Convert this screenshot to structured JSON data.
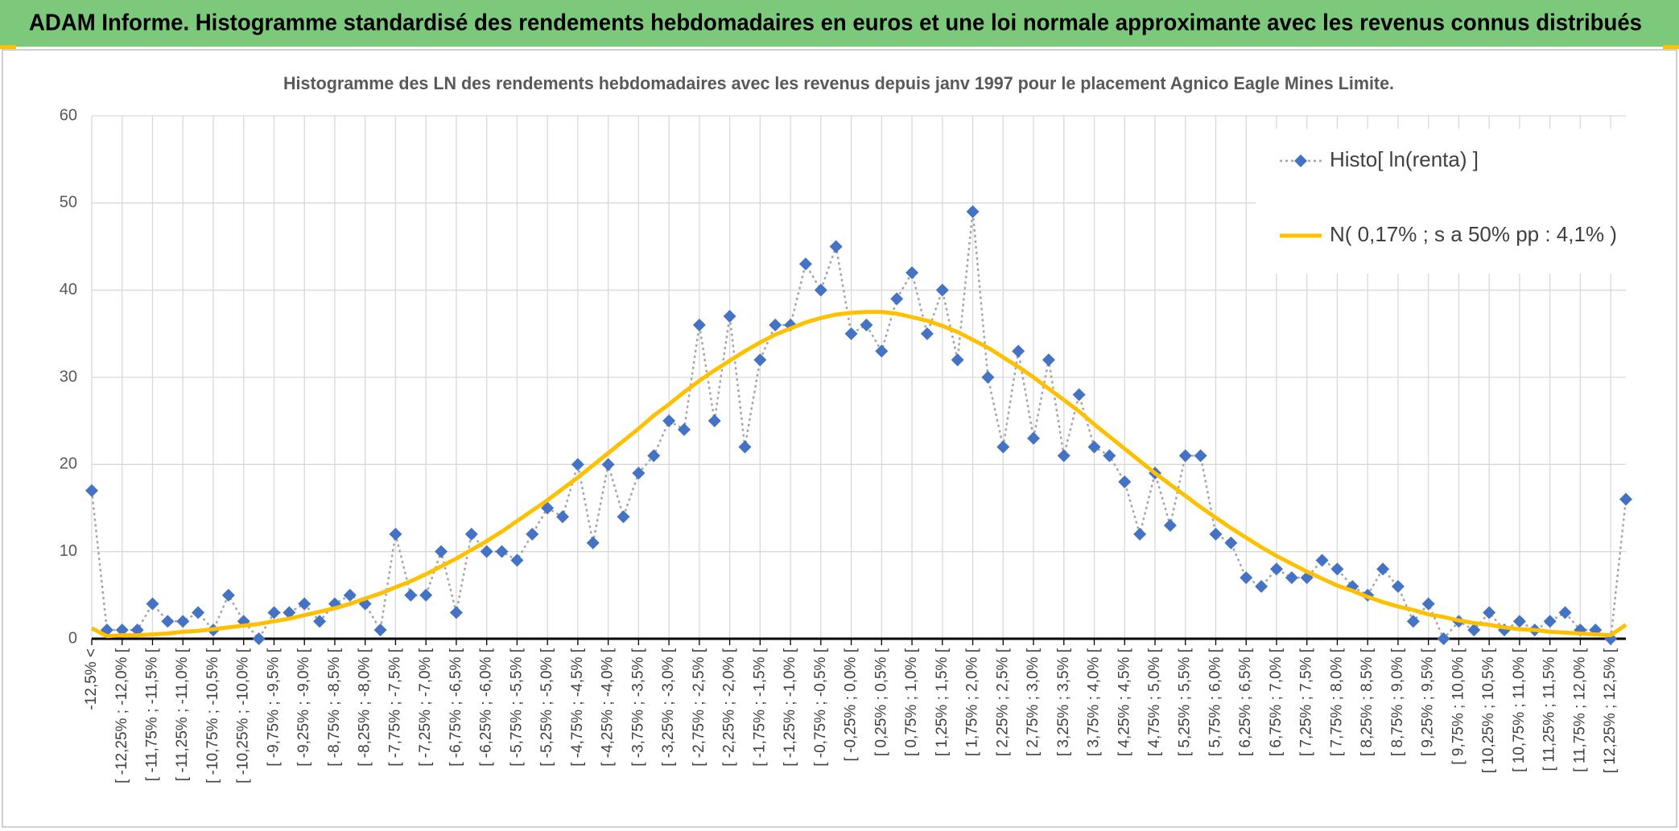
{
  "chart_data": {
    "type": "line",
    "title": "ADAM Informe. Histogramme standardisé des rendements hebdomadaires en euros et une loi normale approximante avec les revenus connus distribués",
    "subtitle": "Histogramme des LN des rendements hebdomadaires avec les revenus depuis janv 1997 pour le placement Agnico Eagle Mines Limite.",
    "categories": [
      "-12,5% <",
      null,
      "[ -12,25% ; -12,0% [",
      null,
      "[ -11,75% ; -11,5% [",
      null,
      "[ -11,25% ; -11,0% [",
      null,
      "[ -10,75% ; -10,5% [",
      null,
      "[ -10,25% ; -10,0% [",
      null,
      "[ -9,75% ; -9,5% [",
      null,
      "[ -9,25% ; -9,0% [",
      null,
      "[ -8,75% ; -8,5% [",
      null,
      "[ -8,25% ; -8,0% [",
      null,
      "[ -7,75% ; -7,5% [",
      null,
      "[ -7,25% ; -7,0% [",
      null,
      "[ -6,75% ; -6,5% [",
      null,
      "[ -6,25% ; -6,0% [",
      null,
      "[ -5,75% ; -5,5% [",
      null,
      "[ -5,25% ; -5,0% [",
      null,
      "[ -4,75% ; -4,5% [",
      null,
      "[ -4,25% ; -4,0% [",
      null,
      "[ -3,75% ; -3,5% [",
      null,
      "[ -3,25% ; -3,0% [",
      null,
      "[ -2,75% ; -2,5% [",
      null,
      "[ -2,25% ; -2,0% [",
      null,
      "[ -1,75% ; -1,5% [",
      null,
      "[ -1,25% ; -1,0% [",
      null,
      "[ -0,75% ; -0,5% [",
      null,
      "[ -0,25% ; 0,0% [",
      null,
      "[ 0,25% ; 0,5% [",
      null,
      "[ 0,75% ; 1,0% [",
      null,
      "[ 1,25% ; 1,5% [",
      null,
      "[ 1,75% ; 2,0% [",
      null,
      "[ 2,25% ; 2,5% [",
      null,
      "[ 2,75% ; 3,0% [",
      null,
      "[ 3,25% ; 3,5% [",
      null,
      "[ 3,75% ; 4,0% [",
      null,
      "[ 4,25% ; 4,5% [",
      null,
      "[ 4,75% ; 5,0% [",
      null,
      "[ 5,25% ; 5,5% [",
      null,
      "[ 5,75% ; 6,0% [",
      null,
      "[ 6,25% ; 6,5% [",
      null,
      "[ 6,75% ; 7,0% [",
      null,
      "[ 7,25% ; 7,5% [",
      null,
      "[ 7,75% ; 8,0% [",
      null,
      "[ 8,25% ; 8,5% [",
      null,
      "[ 8,75% ; 9,0% [",
      null,
      "[ 9,25% ; 9,5% [",
      null,
      "[ 9,75% ; 10,0% [",
      null,
      "[ 10,25% ; 10,5% [",
      null,
      "[ 10,75% ; 11,0% [",
      null,
      "[ 11,25% ; 11,5% [",
      null,
      "[ 11,75% ; 12,0% [",
      null,
      "[ 12,25% ; 12,5% [",
      null
    ],
    "series": [
      {
        "name": "Histo[ ln(renta) ]",
        "color": "#4472c4",
        "marker": "diamond",
        "line_color": "#a5a5a5",
        "line_style": "dotted",
        "values": [
          17,
          1,
          1,
          1,
          4,
          2,
          2,
          3,
          1,
          5,
          2,
          0,
          3,
          3,
          4,
          2,
          4,
          5,
          4,
          1,
          12,
          5,
          5,
          10,
          3,
          12,
          10,
          10,
          9,
          12,
          15,
          14,
          20,
          11,
          20,
          14,
          19,
          21,
          25,
          24,
          36,
          25,
          37,
          22,
          32,
          36,
          36,
          43,
          40,
          45,
          35,
          36,
          33,
          39,
          42,
          35,
          40,
          32,
          49,
          30,
          22,
          33,
          23,
          32,
          21,
          28,
          22,
          21,
          18,
          12,
          19,
          13,
          21,
          21,
          12,
          11,
          7,
          6,
          8,
          7,
          7,
          9,
          8,
          6,
          5,
          8,
          6,
          2,
          4,
          0,
          2,
          1,
          3,
          1,
          2,
          1,
          2,
          3,
          1,
          1,
          0,
          16
        ]
      },
      {
        "name": "N( 0,17% ; s a 50% pp : 4,1% )",
        "color": "#ffc000",
        "line_style": "solid",
        "values": [
          1.2,
          0.3,
          0.4,
          0.4,
          0.5,
          0.6,
          0.8,
          0.9,
          1.1,
          1.3,
          1.5,
          1.7,
          2.0,
          2.3,
          2.7,
          3.1,
          3.5,
          4.0,
          4.6,
          5.2,
          5.9,
          6.6,
          7.4,
          8.3,
          9.2,
          10.2,
          11.2,
          12.3,
          13.5,
          14.7,
          15.9,
          17.2,
          18.5,
          19.9,
          21.3,
          22.7,
          24.1,
          25.6,
          26.9,
          28.3,
          29.6,
          30.8,
          31.9,
          33.0,
          34.0,
          34.9,
          35.6,
          36.3,
          36.8,
          37.2,
          37.4,
          37.5,
          37.5,
          37.3,
          36.9,
          36.5,
          35.9,
          35.2,
          34.3,
          33.4,
          32.3,
          31.2,
          30.0,
          28.7,
          27.4,
          26.1,
          24.6,
          23.2,
          21.8,
          20.4,
          19.0,
          17.7,
          16.4,
          15.1,
          13.9,
          12.7,
          11.6,
          10.5,
          9.5,
          8.6,
          7.7,
          6.9,
          6.1,
          5.5,
          4.8,
          4.2,
          3.7,
          3.3,
          2.8,
          2.5,
          2.1,
          1.8,
          1.6,
          1.3,
          1.1,
          1.0,
          0.8,
          0.7,
          0.6,
          0.5,
          0.4,
          1.6
        ]
      }
    ],
    "ylim": [
      0,
      60
    ],
    "yticks": [
      0,
      10,
      20,
      30,
      40,
      50,
      60
    ],
    "grid": true,
    "legend": "top-right"
  }
}
